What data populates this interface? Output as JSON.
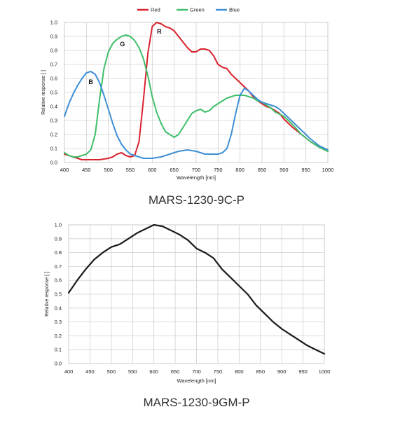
{
  "captions": {
    "color_model": "MARS-1230-9C-P",
    "mono_model": "MARS-1230-9GM-P"
  },
  "colors": {
    "red": "#d9232e",
    "green": "#3fbf6a",
    "blue": "#3e8fd6",
    "mono": "#1a1a1a",
    "grid": "#d0d0d0"
  },
  "chart_data": [
    {
      "type": "line",
      "title": "",
      "xlabel": "Wavelength [nm]",
      "ylabel": "Relative response [ ]",
      "xlim": [
        400,
        1000
      ],
      "ylim": [
        0,
        1.0
      ],
      "xticks": [
        "400",
        "450",
        "500",
        "550",
        "600",
        "650",
        "700",
        "750",
        "800",
        "850",
        "900",
        "950",
        "1000"
      ],
      "yticks": [
        "0.0",
        "0.1",
        "0.2",
        "0.3",
        "0.4",
        "0.5",
        "0.6",
        "0.7",
        "0.8",
        "0.9",
        "1.0"
      ],
      "grid": true,
      "legend": "top-center",
      "annotations": [
        {
          "text": "R",
          "x": 616,
          "y": 0.92
        },
        {
          "text": "G",
          "x": 532,
          "y": 0.83
        },
        {
          "text": "B",
          "x": 460,
          "y": 0.56
        }
      ],
      "series": [
        {
          "name": "Red",
          "color": "red",
          "x": [
            400,
            420,
            440,
            460,
            480,
            500,
            510,
            520,
            530,
            540,
            550,
            560,
            570,
            580,
            590,
            600,
            610,
            620,
            630,
            640,
            650,
            660,
            670,
            680,
            690,
            700,
            710,
            720,
            730,
            740,
            750,
            760,
            770,
            780,
            790,
            800,
            810,
            820,
            830,
            840,
            850,
            860,
            870,
            880,
            890,
            900,
            920,
            940,
            960,
            980,
            1000
          ],
          "y": [
            0.06,
            0.04,
            0.02,
            0.02,
            0.02,
            0.03,
            0.04,
            0.06,
            0.07,
            0.05,
            0.04,
            0.05,
            0.15,
            0.45,
            0.78,
            0.97,
            1.0,
            0.99,
            0.97,
            0.96,
            0.94,
            0.9,
            0.86,
            0.82,
            0.79,
            0.79,
            0.81,
            0.81,
            0.8,
            0.76,
            0.7,
            0.68,
            0.67,
            0.63,
            0.6,
            0.57,
            0.54,
            0.51,
            0.47,
            0.44,
            0.42,
            0.4,
            0.39,
            0.37,
            0.35,
            0.31,
            0.25,
            0.2,
            0.15,
            0.11,
            0.08
          ]
        },
        {
          "name": "Green",
          "color": "green",
          "x": [
            400,
            410,
            420,
            430,
            440,
            450,
            460,
            470,
            480,
            490,
            500,
            510,
            520,
            530,
            540,
            550,
            560,
            570,
            580,
            590,
            600,
            610,
            620,
            630,
            640,
            650,
            660,
            670,
            680,
            690,
            700,
            710,
            720,
            730,
            740,
            750,
            760,
            770,
            780,
            790,
            800,
            810,
            820,
            830,
            840,
            850,
            860,
            870,
            880,
            900,
            920,
            940,
            960,
            980,
            1000
          ],
          "y": [
            0.07,
            0.05,
            0.04,
            0.04,
            0.05,
            0.06,
            0.09,
            0.2,
            0.45,
            0.67,
            0.79,
            0.85,
            0.88,
            0.9,
            0.91,
            0.9,
            0.87,
            0.82,
            0.74,
            0.62,
            0.47,
            0.36,
            0.28,
            0.22,
            0.2,
            0.18,
            0.2,
            0.25,
            0.3,
            0.35,
            0.37,
            0.38,
            0.36,
            0.37,
            0.4,
            0.42,
            0.44,
            0.46,
            0.47,
            0.48,
            0.48,
            0.48,
            0.47,
            0.46,
            0.44,
            0.43,
            0.41,
            0.39,
            0.36,
            0.33,
            0.27,
            0.2,
            0.15,
            0.11,
            0.08
          ]
        },
        {
          "name": "Blue",
          "color": "blue",
          "x": [
            400,
            410,
            420,
            430,
            440,
            450,
            460,
            470,
            480,
            490,
            500,
            510,
            520,
            530,
            540,
            550,
            560,
            570,
            580,
            600,
            620,
            640,
            660,
            680,
            700,
            710,
            720,
            730,
            740,
            750,
            760,
            770,
            780,
            790,
            800,
            810,
            820,
            830,
            840,
            850,
            860,
            870,
            880,
            890,
            900,
            920,
            940,
            960,
            980,
            1000
          ],
          "y": [
            0.33,
            0.42,
            0.49,
            0.55,
            0.6,
            0.64,
            0.65,
            0.63,
            0.57,
            0.48,
            0.38,
            0.28,
            0.19,
            0.13,
            0.09,
            0.06,
            0.05,
            0.04,
            0.03,
            0.03,
            0.04,
            0.06,
            0.08,
            0.09,
            0.08,
            0.07,
            0.06,
            0.06,
            0.06,
            0.06,
            0.07,
            0.1,
            0.2,
            0.35,
            0.48,
            0.53,
            0.51,
            0.48,
            0.45,
            0.43,
            0.42,
            0.41,
            0.4,
            0.38,
            0.35,
            0.29,
            0.23,
            0.17,
            0.12,
            0.09
          ]
        }
      ]
    },
    {
      "type": "line",
      "title": "",
      "xlabel": "Wavelength [nm]",
      "ylabel": "Relative response [ ]",
      "xlim": [
        400,
        1000
      ],
      "ylim": [
        0,
        1.0
      ],
      "xticks": [
        "400",
        "450",
        "500",
        "550",
        "600",
        "650",
        "700",
        "750",
        "800",
        "850",
        "900",
        "950",
        "1000"
      ],
      "yticks": [
        "0.0",
        "0.1",
        "0.2",
        "0.3",
        "0.4",
        "0.5",
        "0.6",
        "0.7",
        "0.8",
        "0.9",
        "1.0"
      ],
      "grid": true,
      "series": [
        {
          "name": "",
          "color": "mono",
          "x": [
            400,
            420,
            440,
            460,
            480,
            500,
            520,
            540,
            560,
            580,
            600,
            620,
            640,
            660,
            680,
            700,
            720,
            740,
            760,
            780,
            800,
            820,
            840,
            860,
            880,
            900,
            920,
            940,
            960,
            980,
            1000
          ],
          "y": [
            0.51,
            0.6,
            0.68,
            0.75,
            0.8,
            0.84,
            0.86,
            0.9,
            0.94,
            0.97,
            1.0,
            0.99,
            0.96,
            0.93,
            0.89,
            0.83,
            0.8,
            0.76,
            0.68,
            0.62,
            0.56,
            0.5,
            0.42,
            0.36,
            0.3,
            0.25,
            0.21,
            0.17,
            0.13,
            0.1,
            0.07
          ]
        }
      ]
    }
  ]
}
